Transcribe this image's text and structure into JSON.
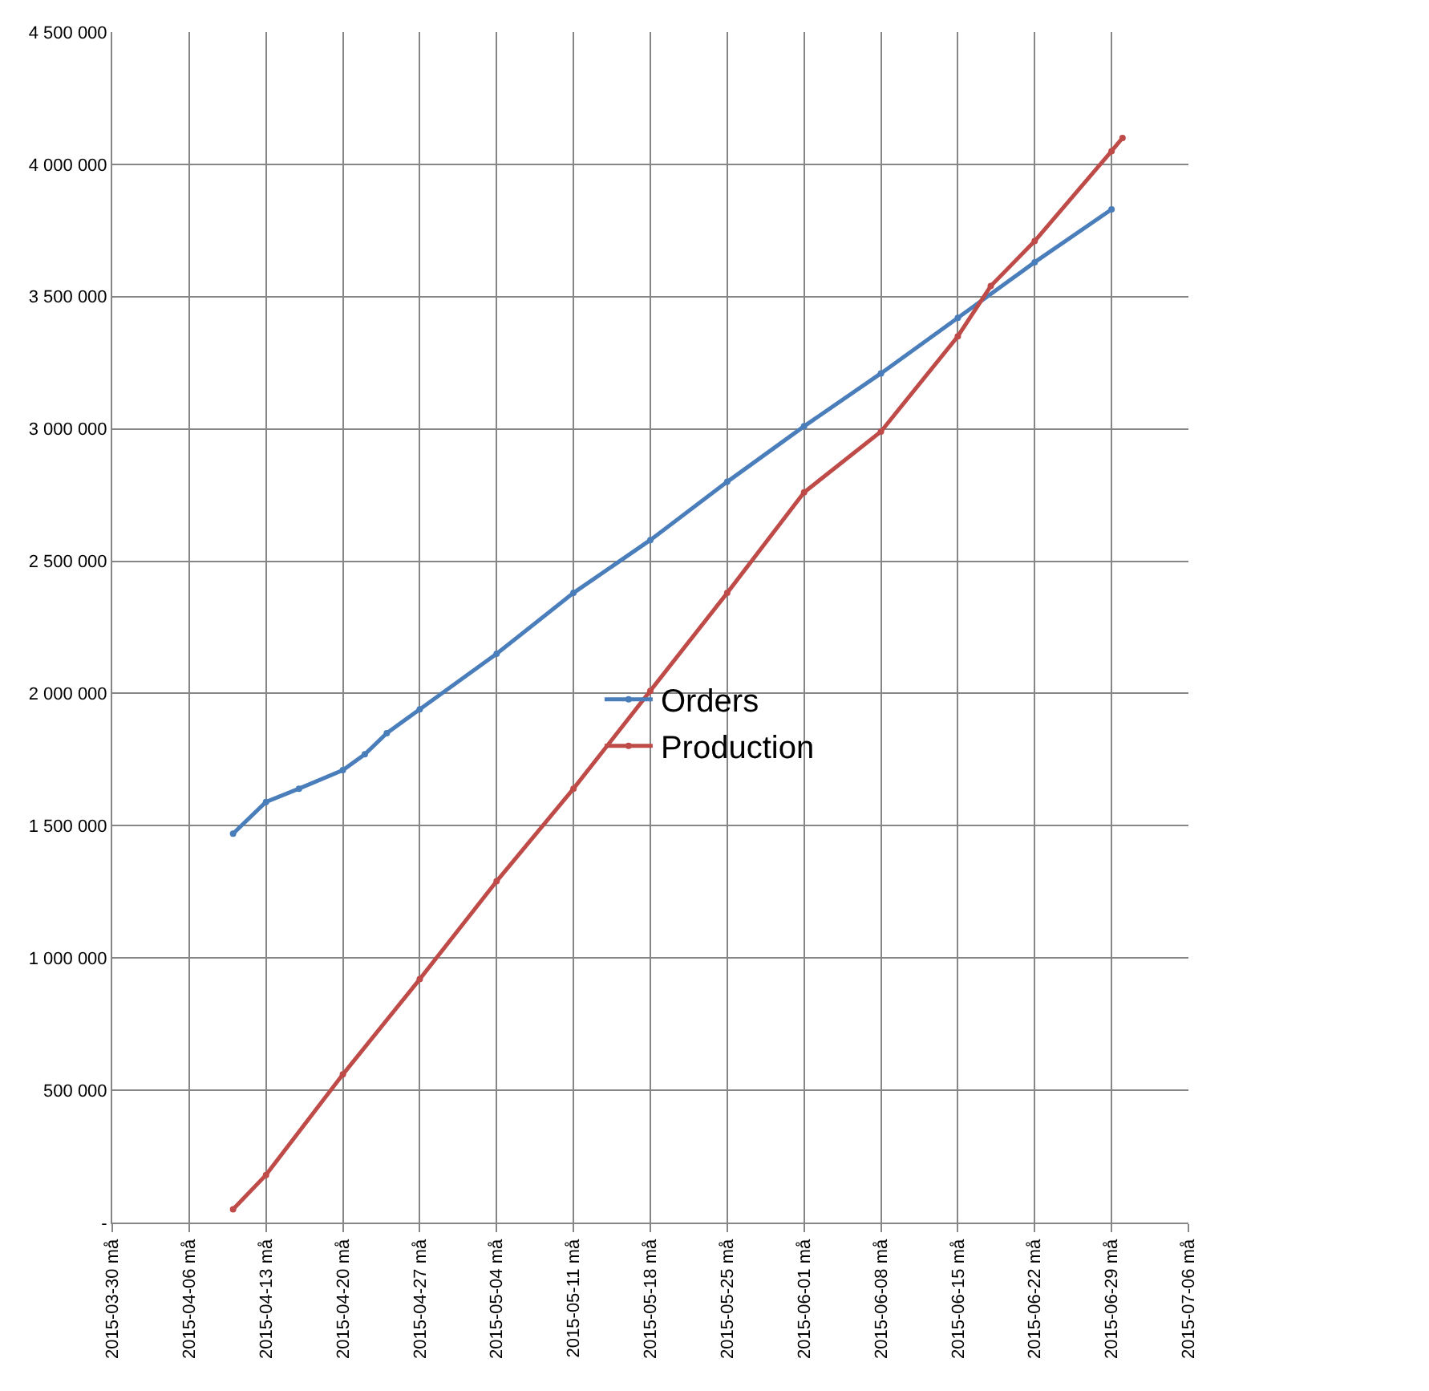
{
  "chart_data": {
    "type": "line",
    "marker": "circle",
    "line_style": "solid",
    "grid": true,
    "legend": "center",
    "xlim": [
      "2015-03-30",
      "2015-07-06"
    ],
    "xticks": [
      {
        "value": "2015-03-30",
        "label": "2015-03-30 må"
      },
      {
        "value": "2015-04-06",
        "label": "2015-04-06 må"
      },
      {
        "value": "2015-04-13",
        "label": "2015-04-13 må"
      },
      {
        "value": "2015-04-20",
        "label": "2015-04-20 må"
      },
      {
        "value": "2015-04-27",
        "label": "2015-04-27 må"
      },
      {
        "value": "2015-05-04",
        "label": "2015-05-04 må"
      },
      {
        "value": "2015-05-11",
        "label": "2015-05-11 må"
      },
      {
        "value": "2015-05-18",
        "label": "2015-05-18 må"
      },
      {
        "value": "2015-05-25",
        "label": "2015-05-25 må"
      },
      {
        "value": "2015-06-01",
        "label": "2015-06-01 må"
      },
      {
        "value": "2015-06-08",
        "label": "2015-06-08 må"
      },
      {
        "value": "2015-06-15",
        "label": "2015-06-15 må"
      },
      {
        "value": "2015-06-22",
        "label": "2015-06-22 må"
      },
      {
        "value": "2015-06-29",
        "label": "2015-06-29 må"
      },
      {
        "value": "2015-07-06",
        "label": "2015-07-06 må"
      }
    ],
    "ylim": [
      0,
      4500000
    ],
    "yticks": [
      {
        "value": 0,
        "label": "-"
      },
      {
        "value": 500000,
        "label": "500 000"
      },
      {
        "value": 1000000,
        "label": "1 000 000"
      },
      {
        "value": 1500000,
        "label": "1 500 000"
      },
      {
        "value": 2000000,
        "label": "2 000 000"
      },
      {
        "value": 2500000,
        "label": "2 500 000"
      },
      {
        "value": 3000000,
        "label": "3 000 000"
      },
      {
        "value": 3500000,
        "label": "3 500 000"
      },
      {
        "value": 4000000,
        "label": "4 000 000"
      },
      {
        "value": 4500000,
        "label": "4 500 000"
      }
    ],
    "series": [
      {
        "name": "Orders",
        "color": "#4a7ebb",
        "x": [
          "2015-04-10",
          "2015-04-13",
          "2015-04-16",
          "2015-04-20",
          "2015-04-22",
          "2015-04-24",
          "2015-04-27",
          "2015-05-04",
          "2015-05-11",
          "2015-05-18",
          "2015-05-25",
          "2015-06-01",
          "2015-06-08",
          "2015-06-15",
          "2015-06-22",
          "2015-06-29"
        ],
        "values": [
          1470000,
          1590000,
          1640000,
          1710000,
          1770000,
          1850000,
          1940000,
          2150000,
          2380000,
          2580000,
          2800000,
          3010000,
          3210000,
          3420000,
          3630000,
          3830000
        ]
      },
      {
        "name": "Production",
        "color": "#be4b48",
        "x": [
          "2015-04-10",
          "2015-04-13",
          "2015-04-20",
          "2015-04-27",
          "2015-05-04",
          "2015-05-11",
          "2015-05-18",
          "2015-05-25",
          "2015-06-01",
          "2015-06-08",
          "2015-06-15",
          "2015-06-18",
          "2015-06-22",
          "2015-06-29",
          "2015-06-30"
        ],
        "values": [
          50000,
          180000,
          560000,
          920000,
          1290000,
          1640000,
          2010000,
          2380000,
          2760000,
          2990000,
          3350000,
          3540000,
          3710000,
          4050000,
          4100000
        ]
      }
    ]
  }
}
